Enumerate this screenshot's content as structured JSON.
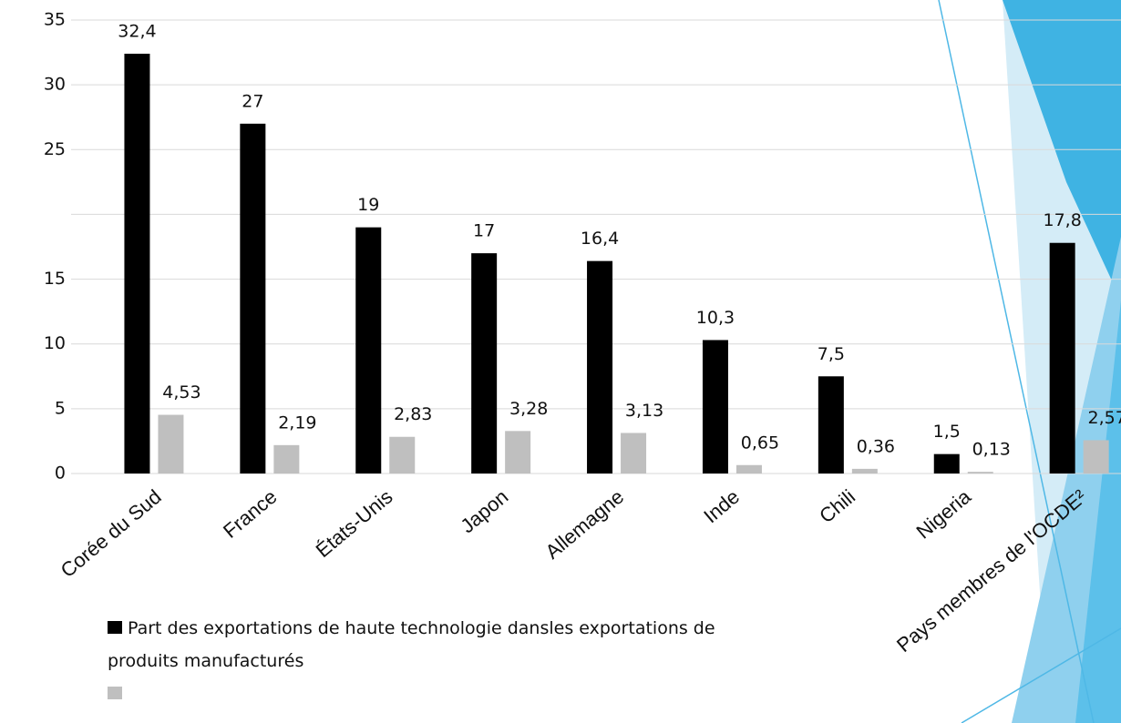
{
  "chart_data": {
    "type": "bar",
    "categories": [
      "Corée du Sud",
      "France",
      "États-Unis",
      "Japon",
      "Allemagne",
      "Inde",
      "Chili",
      "Nigeria",
      "Pays membres de l'OCDE²"
    ],
    "series": [
      {
        "name": "Part des exportations de haute technologie dansles exportations de produits manufacturés",
        "color": "#000000",
        "values": [
          32.4,
          27,
          19,
          17,
          16.4,
          10.3,
          7.5,
          1.5,
          17.8
        ],
        "value_labels": [
          "32,4",
          "27",
          "19",
          "17",
          "16,4",
          "10,3",
          "7,5",
          "1,5",
          "17,8"
        ]
      },
      {
        "name": null,
        "color": "#bfbfbf",
        "values": [
          4.53,
          2.19,
          2.83,
          3.28,
          3.13,
          0.65,
          0.36,
          0.13,
          2.57
        ],
        "value_labels": [
          "4,53",
          "2,19",
          "2,83",
          "3,28",
          "3,13",
          "0,65",
          "0,36",
          "0,13",
          "2,57"
        ]
      }
    ],
    "ylim": [
      0,
      35
    ],
    "yticks": [
      0,
      5,
      10,
      15,
      {
        "value": 20,
        "label": null
      },
      25,
      30,
      35
    ],
    "grid": true
  }
}
